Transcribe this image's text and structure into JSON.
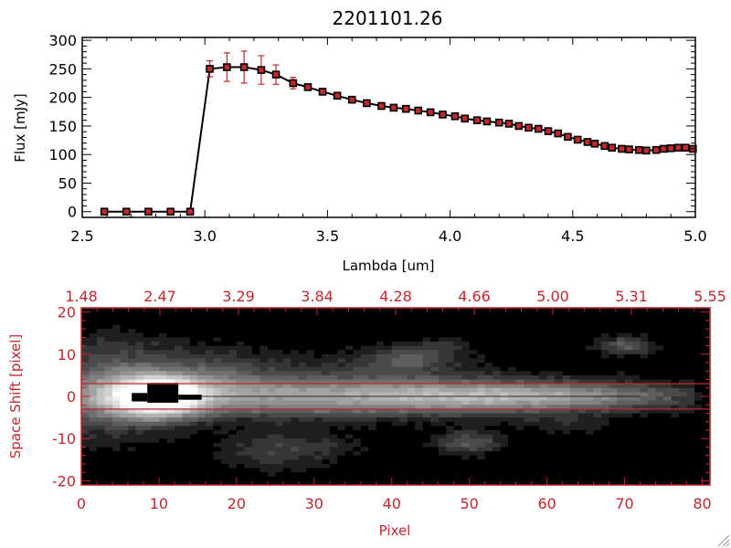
{
  "chart_data": [
    {
      "type": "line",
      "title": "2201101.26",
      "xlabel": "Lambda [um]",
      "ylabel": "Flux [mJy]",
      "xlim": [
        2.5,
        5.0
      ],
      "ylim": [
        -10,
        305
      ],
      "x_ticks": [
        "2.5",
        "3.0",
        "3.5",
        "4.0",
        "4.5",
        "5.0"
      ],
      "y_ticks": [
        "0",
        "50",
        "100",
        "150",
        "200",
        "250",
        "300"
      ],
      "line_color": "#000000",
      "marker_color": "#c0282d",
      "errorbar_color": "#c0282d",
      "series": [
        {
          "x": [
            2.59,
            2.68,
            2.77,
            2.86,
            2.94,
            3.02,
            3.09,
            3.16,
            3.23,
            3.29,
            3.36,
            3.42,
            3.48,
            3.54,
            3.6,
            3.66,
            3.72,
            3.77,
            3.82,
            3.87,
            3.92,
            3.97,
            4.02,
            4.06,
            4.11,
            4.15,
            4.2,
            4.24,
            4.28,
            4.32,
            4.36,
            4.4,
            4.44,
            4.48,
            4.52,
            4.56,
            4.59,
            4.63,
            4.66,
            4.7,
            4.73,
            4.77,
            4.8,
            4.84,
            4.87,
            4.9,
            4.93,
            4.96,
            4.99
          ],
          "y": [
            0,
            0,
            0,
            0,
            0,
            250,
            253,
            253,
            248,
            240,
            225,
            218,
            210,
            203,
            196,
            190,
            185,
            182,
            180,
            177,
            174,
            170,
            167,
            163,
            160,
            158,
            156,
            154,
            150,
            147,
            145,
            141,
            137,
            131,
            126,
            122,
            119,
            115,
            112,
            110,
            109,
            108,
            107,
            108,
            110,
            111,
            112,
            112,
            110
          ],
          "yerr": [
            0,
            0,
            0,
            0,
            0,
            14,
            25,
            28,
            25,
            17,
            10,
            5,
            4,
            3,
            3,
            3,
            3,
            3,
            3,
            3,
            3,
            3,
            3,
            3,
            3,
            3,
            3,
            3,
            3,
            3,
            3,
            3,
            3,
            3,
            3,
            3,
            3,
            3,
            3,
            3,
            3,
            3,
            3,
            3,
            3,
            3,
            3,
            3,
            3
          ]
        }
      ]
    },
    {
      "type": "heatmap",
      "xlabel": "Pixel",
      "ylabel": "Space Shift [pixel]",
      "xlim": [
        0,
        81
      ],
      "ylim": [
        -21,
        21
      ],
      "x_ticks": [
        "0",
        "10",
        "20",
        "30",
        "40",
        "50",
        "60",
        "70",
        "80"
      ],
      "y_ticks": [
        "-20",
        "-10",
        "0",
        "10",
        "20"
      ],
      "top_axis_ticks": [
        "1.48",
        "2.47",
        "3.29",
        "3.84",
        "4.28",
        "4.66",
        "5.00",
        "5.31",
        "5.55"
      ],
      "aperture_lines": [
        3,
        -3
      ],
      "trace_row": 0,
      "axis_color": "#c0282d",
      "blobs": [
        {
          "x": 10,
          "y": 0,
          "sx": 4.0,
          "sy": 3.2,
          "a": 1.0
        },
        {
          "x": 4,
          "y": 2,
          "sx": 6,
          "sy": 8,
          "a": 0.35
        },
        {
          "x": 30,
          "y": 0,
          "sx": 22,
          "sy": 3.4,
          "a": 0.55
        },
        {
          "x": 58,
          "y": 0,
          "sx": 14,
          "sy": 2.2,
          "a": 0.45
        },
        {
          "x": 40,
          "y": 8,
          "sx": 8,
          "sy": 3,
          "a": 0.14
        },
        {
          "x": 42,
          "y": 9,
          "sx": 3,
          "sy": 2,
          "a": 0.18
        },
        {
          "x": 50,
          "y": -11,
          "sx": 3,
          "sy": 2,
          "a": 0.28
        },
        {
          "x": 70,
          "y": 12,
          "sx": 2.5,
          "sy": 1.6,
          "a": 0.3
        },
        {
          "x": 28,
          "y": -12,
          "sx": 6,
          "sy": 3,
          "a": 0.14
        },
        {
          "x": 18,
          "y": 6,
          "sx": 6,
          "sy": 4,
          "a": 0.2
        },
        {
          "x": 24,
          "y": -14,
          "sx": 5,
          "sy": 3,
          "a": 0.1
        },
        {
          "x": 47,
          "y": 12,
          "sx": 2.5,
          "sy": 1.6,
          "a": 0.12
        },
        {
          "x": 63,
          "y": -7,
          "sx": 4,
          "sy": 2,
          "a": 0.1
        }
      ],
      "black_core": {
        "x": [
          8.5,
          12.5
        ],
        "y": [
          -1.5,
          3.2
        ]
      }
    }
  ]
}
